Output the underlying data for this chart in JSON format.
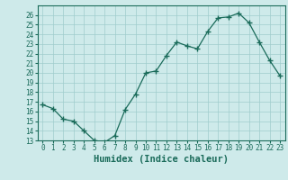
{
  "x": [
    0,
    1,
    2,
    3,
    4,
    5,
    6,
    7,
    8,
    9,
    10,
    11,
    12,
    13,
    14,
    15,
    16,
    17,
    18,
    19,
    20,
    21,
    22,
    23
  ],
  "y": [
    16.7,
    16.3,
    15.2,
    15.0,
    14.0,
    13.0,
    12.8,
    13.5,
    16.2,
    17.8,
    20.0,
    20.2,
    21.8,
    23.2,
    22.8,
    22.5,
    24.3,
    25.7,
    25.8,
    26.2,
    25.2,
    23.2,
    21.3,
    19.7
  ],
  "xlabel": "Humidex (Indice chaleur)",
  "ylim": [
    13,
    27
  ],
  "xlim": [
    -0.5,
    23.5
  ],
  "yticks": [
    13,
    14,
    15,
    16,
    17,
    18,
    19,
    20,
    21,
    22,
    23,
    24,
    25,
    26
  ],
  "xticks": [
    0,
    1,
    2,
    3,
    4,
    5,
    6,
    7,
    8,
    9,
    10,
    11,
    12,
    13,
    14,
    15,
    16,
    17,
    18,
    19,
    20,
    21,
    22,
    23
  ],
  "line_color": "#1a6b5a",
  "marker": "+",
  "bg_color": "#ceeaea",
  "grid_color": "#a0cccc",
  "axis_label_color": "#1a6b5a",
  "tick_label_color": "#1a6b5a",
  "xlabel_fontsize": 7.5,
  "tick_fontsize": 5.5
}
